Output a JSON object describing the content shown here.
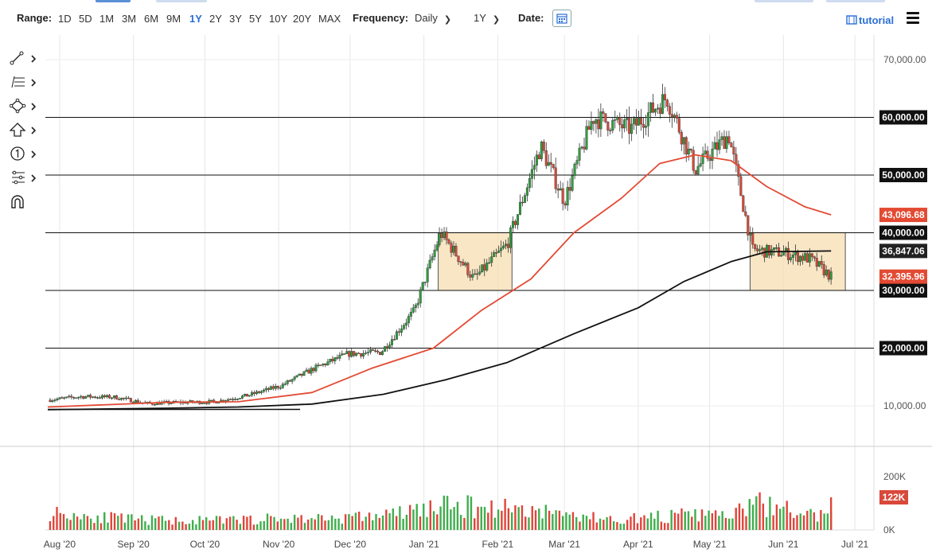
{
  "toolbar": {
    "range_label": "Range:",
    "ranges": [
      "1D",
      "5D",
      "1M",
      "3M",
      "6M",
      "9M",
      "1Y",
      "2Y",
      "3Y",
      "5Y",
      "10Y",
      "20Y",
      "MAX"
    ],
    "active_range": "1Y",
    "frequency_label": "Frequency:",
    "frequency_value": "Daily",
    "period_value": "1Y",
    "date_label": "Date:",
    "tutorial_label": "tutorial"
  },
  "sidebar_tools": [
    "line-draw-icon",
    "fibonacci-icon",
    "shapes-icon",
    "arrow-icon",
    "annotation-icon",
    "pattern-icon",
    "magnet-icon"
  ],
  "colors": {
    "up": "#2e9e3e",
    "down": "#d8493a",
    "ma50": "#e34a33",
    "ma200": "#111111",
    "box_fill": "#f6ddb2",
    "vol_up": "#3fae4c",
    "vol_down": "#e0443a",
    "accent": "#2a6fd6"
  },
  "chart_data": {
    "type": "candlestick",
    "x_tick_labels": [
      "Aug '20",
      "Sep '20",
      "Oct '20",
      "Nov '20",
      "Dec '20",
      "Jan '21",
      "Feb '21",
      "Mar '21",
      "Apr '21",
      "May '21",
      "Jun '21",
      "Jul '21"
    ],
    "y_tick_labels": [
      "70,000.00",
      "10,000.00"
    ],
    "ylim": [
      8000,
      72000
    ],
    "horizontal_levels": [
      {
        "value": 60000,
        "label": "60,000.00"
      },
      {
        "value": 50000,
        "label": "50,000.00"
      },
      {
        "value": 40000,
        "label": "40,000.00"
      },
      {
        "value": 30000,
        "label": "30,000.00"
      },
      {
        "value": 20000,
        "label": "20,000.00"
      }
    ],
    "price_tags": [
      {
        "value": 43096.68,
        "label": "43,096.68",
        "color": "#e34a33"
      },
      {
        "value": 36847.06,
        "label": "36,847.06",
        "color": "#222222"
      },
      {
        "value": 32395.96,
        "label": "32,395.96",
        "color": "#e34a33"
      }
    ],
    "series": [
      {
        "name": "price",
        "type": "candlestick",
        "points": [
          {
            "date": "2020-07-27",
            "close": 11000
          },
          {
            "date": "2020-08-10",
            "close": 11600
          },
          {
            "date": "2020-08-24",
            "close": 11500
          },
          {
            "date": "2020-09-07",
            "close": 10400
          },
          {
            "date": "2020-09-21",
            "close": 10600
          },
          {
            "date": "2020-10-05",
            "close": 10700
          },
          {
            "date": "2020-10-19",
            "close": 11800
          },
          {
            "date": "2020-11-02",
            "close": 13500
          },
          {
            "date": "2020-11-16",
            "close": 16500
          },
          {
            "date": "2020-11-30",
            "close": 19000
          },
          {
            "date": "2020-12-14",
            "close": 19300
          },
          {
            "date": "2020-12-28",
            "close": 26500
          },
          {
            "date": "2021-01-08",
            "close": 40000
          },
          {
            "date": "2021-01-22",
            "close": 32000
          },
          {
            "date": "2021-02-05",
            "close": 38000
          },
          {
            "date": "2021-02-19",
            "close": 55000
          },
          {
            "date": "2021-03-01",
            "close": 45500
          },
          {
            "date": "2021-03-13",
            "close": 60000
          },
          {
            "date": "2021-03-29",
            "close": 58000
          },
          {
            "date": "2021-04-13",
            "close": 63500
          },
          {
            "date": "2021-04-25",
            "close": 51000
          },
          {
            "date": "2021-05-09",
            "close": 57000
          },
          {
            "date": "2021-05-19",
            "close": 37000
          },
          {
            "date": "2021-06-01",
            "close": 36500
          },
          {
            "date": "2021-06-12",
            "close": 35500
          },
          {
            "date": "2021-06-21",
            "close": 32395.96
          }
        ]
      },
      {
        "name": "",
        "type": "line",
        "role": "moving-average-short",
        "points": [
          {
            "date": "2020-07-27",
            "value": 9600
          },
          {
            "date": "2020-09-15",
            "value": 10600
          },
          {
            "date": "2020-10-15",
            "value": 10700
          },
          {
            "date": "2020-11-15",
            "value": 12300
          },
          {
            "date": "2020-12-10",
            "value": 16500
          },
          {
            "date": "2021-01-05",
            "value": 20000
          },
          {
            "date": "2021-01-25",
            "value": 26500
          },
          {
            "date": "2021-02-15",
            "value": 32000
          },
          {
            "date": "2021-03-05",
            "value": 40000
          },
          {
            "date": "2021-03-25",
            "value": 46000
          },
          {
            "date": "2021-04-10",
            "value": 52000
          },
          {
            "date": "2021-04-25",
            "value": 53500
          },
          {
            "date": "2021-05-10",
            "value": 52500
          },
          {
            "date": "2021-05-25",
            "value": 48000
          },
          {
            "date": "2021-06-10",
            "value": 44500
          },
          {
            "date": "2021-06-21",
            "value": 43096.68
          }
        ]
      },
      {
        "name": "",
        "type": "line",
        "role": "moving-average-long",
        "points": [
          {
            "date": "2020-07-27",
            "value": 8700
          },
          {
            "date": "2020-09-15",
            "value": 9200
          },
          {
            "date": "2020-10-15",
            "value": 9600
          },
          {
            "date": "2020-11-15",
            "value": 10300
          },
          {
            "date": "2020-12-15",
            "value": 12000
          },
          {
            "date": "2021-01-10",
            "value": 14500
          },
          {
            "date": "2021-02-05",
            "value": 17500
          },
          {
            "date": "2021-03-05",
            "value": 22500
          },
          {
            "date": "2021-04-01",
            "value": 27000
          },
          {
            "date": "2021-04-20",
            "value": 31500
          },
          {
            "date": "2021-05-10",
            "value": 35000
          },
          {
            "date": "2021-05-25",
            "value": 36700
          },
          {
            "date": "2021-06-21",
            "value": 36847.06
          }
        ]
      }
    ],
    "consolidation_boxes": [
      {
        "start": "2021-01-07",
        "end": "2021-02-07",
        "low": 30000,
        "high": 40000
      },
      {
        "start": "2021-05-18",
        "end": "2021-06-27",
        "low": 30000,
        "high": 40000
      }
    ],
    "trendline": {
      "start": "2020-07-27",
      "end": "2020-11-10",
      "value": 8800
    },
    "volume": {
      "y_tick_labels": [
        "200K",
        "0K"
      ],
      "ylim": [
        0,
        280000
      ],
      "last_label": "122K",
      "bars": [
        {
          "date": "2020-07-28",
          "value": 170000
        },
        {
          "date": "2020-09-01",
          "value": 100000
        },
        {
          "date": "2020-10-01",
          "value": 90000
        },
        {
          "date": "2020-11-01",
          "value": 110000
        },
        {
          "date": "2020-12-01",
          "value": 120000
        },
        {
          "date": "2020-12-20",
          "value": 155000
        },
        {
          "date": "2021-01-02",
          "value": 210000
        },
        {
          "date": "2021-01-12",
          "value": 230000
        },
        {
          "date": "2021-02-09",
          "value": 215000
        },
        {
          "date": "2021-02-24",
          "value": 170000
        },
        {
          "date": "2021-03-20",
          "value": 100000
        },
        {
          "date": "2021-04-18",
          "value": 140000
        },
        {
          "date": "2021-05-12",
          "value": 150000
        },
        {
          "date": "2021-05-19",
          "value": 265000
        },
        {
          "date": "2021-06-09",
          "value": 160000
        },
        {
          "date": "2021-06-21",
          "value": 122000
        }
      ]
    }
  }
}
